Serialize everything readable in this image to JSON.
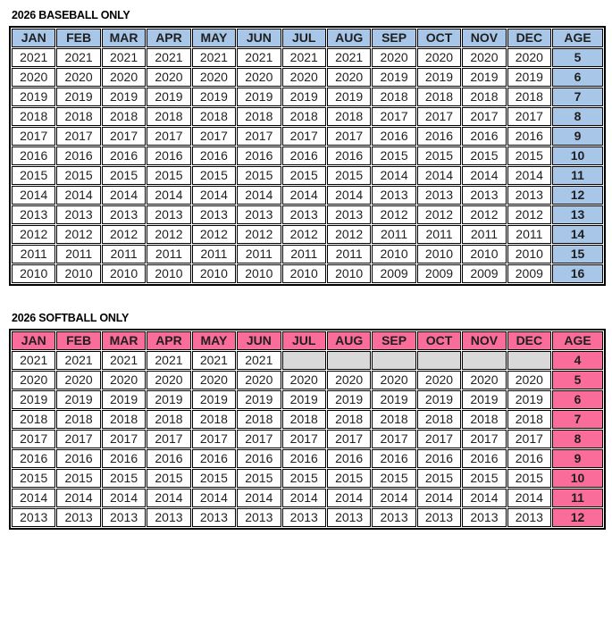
{
  "colors": {
    "baseball_accent": "#a8c6e8",
    "softball_accent": "#fa6d9b",
    "empty_cell": "#d9d9d9",
    "border": "#000000",
    "text": "#1f1f1f"
  },
  "tables": [
    {
      "title": "2026 BASEBALL ONLY",
      "theme": "baseball",
      "months": [
        "JAN",
        "FEB",
        "MAR",
        "APR",
        "MAY",
        "JUN",
        "JUL",
        "AUG",
        "SEP",
        "OCT",
        "NOV",
        "DEC"
      ],
      "age_label": "AGE",
      "rows": [
        {
          "months": [
            "2021",
            "2021",
            "2021",
            "2021",
            "2021",
            "2021",
            "2021",
            "2021",
            "2020",
            "2020",
            "2020",
            "2020"
          ],
          "age": "5"
        },
        {
          "months": [
            "2020",
            "2020",
            "2020",
            "2020",
            "2020",
            "2020",
            "2020",
            "2020",
            "2019",
            "2019",
            "2019",
            "2019"
          ],
          "age": "6"
        },
        {
          "months": [
            "2019",
            "2019",
            "2019",
            "2019",
            "2019",
            "2019",
            "2019",
            "2019",
            "2018",
            "2018",
            "2018",
            "2018"
          ],
          "age": "7"
        },
        {
          "months": [
            "2018",
            "2018",
            "2018",
            "2018",
            "2018",
            "2018",
            "2018",
            "2018",
            "2017",
            "2017",
            "2017",
            "2017"
          ],
          "age": "8"
        },
        {
          "months": [
            "2017",
            "2017",
            "2017",
            "2017",
            "2017",
            "2017",
            "2017",
            "2017",
            "2016",
            "2016",
            "2016",
            "2016"
          ],
          "age": "9"
        },
        {
          "months": [
            "2016",
            "2016",
            "2016",
            "2016",
            "2016",
            "2016",
            "2016",
            "2016",
            "2015",
            "2015",
            "2015",
            "2015"
          ],
          "age": "10"
        },
        {
          "months": [
            "2015",
            "2015",
            "2015",
            "2015",
            "2015",
            "2015",
            "2015",
            "2015",
            "2014",
            "2014",
            "2014",
            "2014"
          ],
          "age": "11"
        },
        {
          "months": [
            "2014",
            "2014",
            "2014",
            "2014",
            "2014",
            "2014",
            "2014",
            "2014",
            "2013",
            "2013",
            "2013",
            "2013"
          ],
          "age": "12"
        },
        {
          "months": [
            "2013",
            "2013",
            "2013",
            "2013",
            "2013",
            "2013",
            "2013",
            "2013",
            "2012",
            "2012",
            "2012",
            "2012"
          ],
          "age": "13"
        },
        {
          "months": [
            "2012",
            "2012",
            "2012",
            "2012",
            "2012",
            "2012",
            "2012",
            "2012",
            "2011",
            "2011",
            "2011",
            "2011"
          ],
          "age": "14"
        },
        {
          "months": [
            "2011",
            "2011",
            "2011",
            "2011",
            "2011",
            "2011",
            "2011",
            "2011",
            "2010",
            "2010",
            "2010",
            "2010"
          ],
          "age": "15"
        },
        {
          "months": [
            "2010",
            "2010",
            "2010",
            "2010",
            "2010",
            "2010",
            "2010",
            "2010",
            "2009",
            "2009",
            "2009",
            "2009"
          ],
          "age": "16"
        }
      ]
    },
    {
      "title": "2026 SOFTBALL ONLY",
      "theme": "softball",
      "months": [
        "JAN",
        "FEB",
        "MAR",
        "APR",
        "MAY",
        "JUN",
        "JUL",
        "AUG",
        "SEP",
        "OCT",
        "NOV",
        "DEC"
      ],
      "age_label": "AGE",
      "rows": [
        {
          "months": [
            "2021",
            "2021",
            "2021",
            "2021",
            "2021",
            "2021",
            "",
            "",
            "",
            "",
            "",
            ""
          ],
          "age": "4"
        },
        {
          "months": [
            "2020",
            "2020",
            "2020",
            "2020",
            "2020",
            "2020",
            "2020",
            "2020",
            "2020",
            "2020",
            "2020",
            "2020"
          ],
          "age": "5"
        },
        {
          "months": [
            "2019",
            "2019",
            "2019",
            "2019",
            "2019",
            "2019",
            "2019",
            "2019",
            "2019",
            "2019",
            "2019",
            "2019"
          ],
          "age": "6"
        },
        {
          "months": [
            "2018",
            "2018",
            "2018",
            "2018",
            "2018",
            "2018",
            "2018",
            "2018",
            "2018",
            "2018",
            "2018",
            "2018"
          ],
          "age": "7"
        },
        {
          "months": [
            "2017",
            "2017",
            "2017",
            "2017",
            "2017",
            "2017",
            "2017",
            "2017",
            "2017",
            "2017",
            "2017",
            "2017"
          ],
          "age": "8"
        },
        {
          "months": [
            "2016",
            "2016",
            "2016",
            "2016",
            "2016",
            "2016",
            "2016",
            "2016",
            "2016",
            "2016",
            "2016",
            "2016"
          ],
          "age": "9"
        },
        {
          "months": [
            "2015",
            "2015",
            "2015",
            "2015",
            "2015",
            "2015",
            "2015",
            "2015",
            "2015",
            "2015",
            "2015",
            "2015"
          ],
          "age": "10"
        },
        {
          "months": [
            "2014",
            "2014",
            "2014",
            "2014",
            "2014",
            "2014",
            "2014",
            "2014",
            "2014",
            "2014",
            "2014",
            "2014"
          ],
          "age": "11"
        },
        {
          "months": [
            "2013",
            "2013",
            "2013",
            "2013",
            "2013",
            "2013",
            "2013",
            "2013",
            "2013",
            "2013",
            "2013",
            "2013"
          ],
          "age": "12"
        }
      ]
    }
  ]
}
